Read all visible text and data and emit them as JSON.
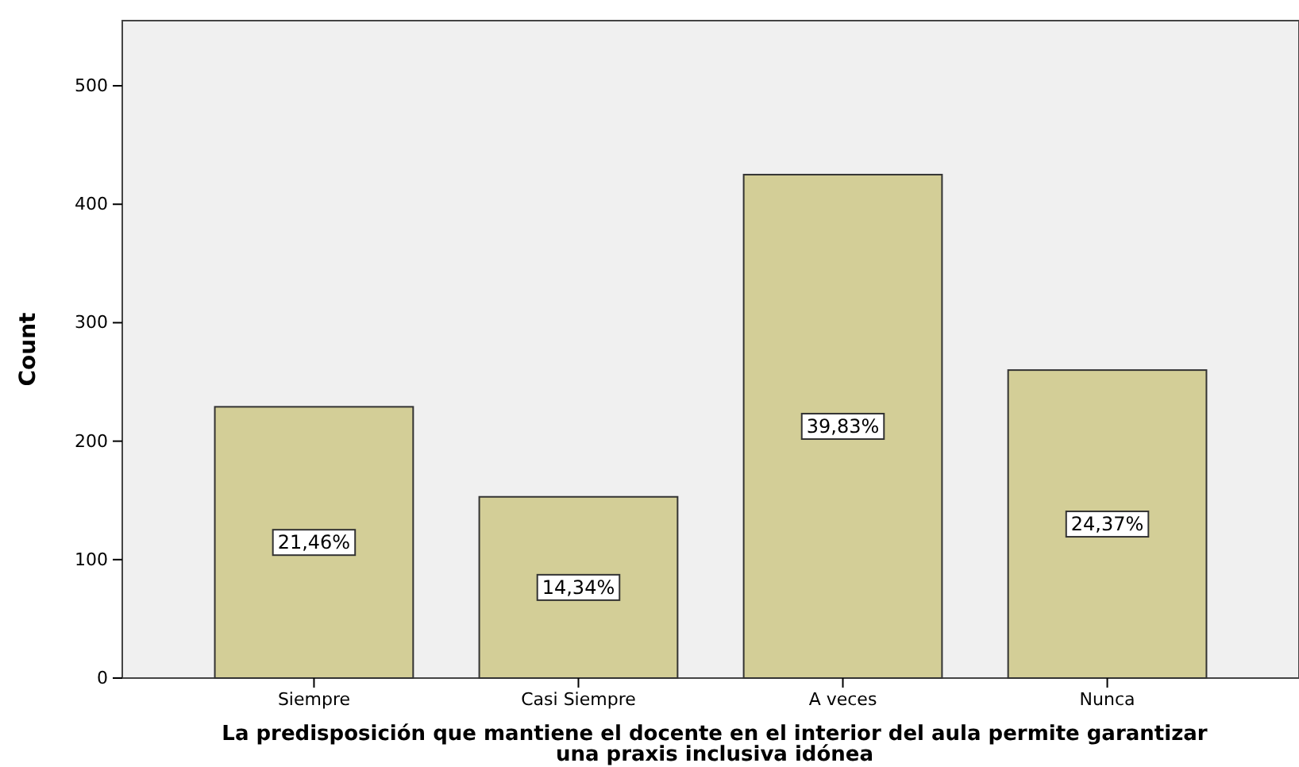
{
  "chart_data": {
    "type": "bar",
    "xlabel": "La predisposición que mantiene el docente en el interior del aula permite garantizar una praxis inclusiva idónea",
    "ylabel": "Count",
    "categories": [
      "Siempre",
      "Casi Siempre",
      "A veces",
      "Nunca"
    ],
    "values": [
      229,
      153,
      425,
      260
    ],
    "annotations": [
      "21,46%",
      "14,34%",
      "39,83%",
      "24,37%"
    ],
    "color": "#d3ce97",
    "ylim": [
      0,
      555
    ],
    "yticks": [
      0,
      100,
      200,
      300,
      400,
      500
    ],
    "grid": false
  }
}
